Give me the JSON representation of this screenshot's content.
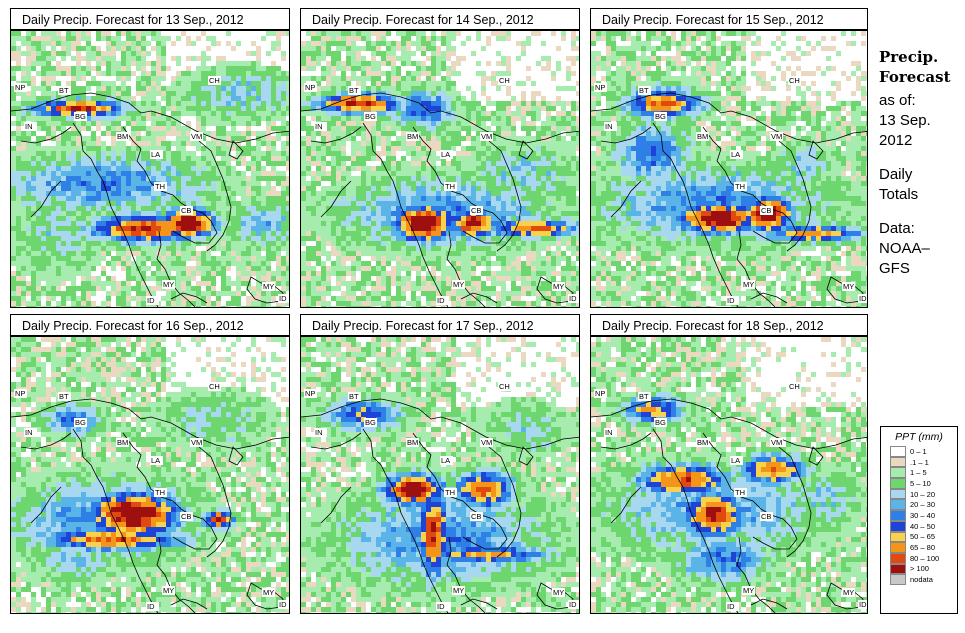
{
  "panels": [
    {
      "title": "Daily Precip. Forecast for  13 Sep., 2012"
    },
    {
      "title": "Daily Precip. Forecast for  14 Sep., 2012"
    },
    {
      "title": "Daily Precip. Forecast for  15 Sep., 2012"
    },
    {
      "title": "Daily Precip. Forecast for  16 Sep., 2012"
    },
    {
      "title": "Daily Precip. Forecast for  17 Sep., 2012"
    },
    {
      "title": "Daily Precip. Forecast for  18 Sep., 2012"
    }
  ],
  "map_labels": {
    "np": "NP",
    "bt": "BT",
    "bg": "BG",
    "in": "IN",
    "ch": "CH",
    "bm": "BM",
    "vm": "VM",
    "la": "LA",
    "th": "TH",
    "cb": "CB",
    "my": "MY",
    "id": "ID"
  },
  "sidebar": {
    "heading_line1": "Precip.",
    "heading_line2": "Forecast",
    "asof_line1": "as of:",
    "asof_line2": "13 Sep.",
    "asof_line3": "2012",
    "daily_line1": "Daily",
    "daily_line2": "Totals",
    "data_line1": "Data:",
    "data_line2": "NOAA–",
    "data_line3": "GFS"
  },
  "legend": {
    "title": "PPT (mm)",
    "items": [
      {
        "label": "0 – 1",
        "color": "#ffffff"
      },
      {
        "label": ".1 – 1",
        "color": "#ead9c0"
      },
      {
        "label": "1 – 5",
        "color": "#a6ecae"
      },
      {
        "label": "5 – 10",
        "color": "#6ed66e"
      },
      {
        "label": "10 – 20",
        "color": "#a8d8f0"
      },
      {
        "label": "20 – 30",
        "color": "#5ab4e8"
      },
      {
        "label": "30 – 40",
        "color": "#2e7fe6"
      },
      {
        "label": "40 – 50",
        "color": "#1d44d6"
      },
      {
        "label": "50 – 65",
        "color": "#f8d24a"
      },
      {
        "label": "65 – 80",
        "color": "#f49418"
      },
      {
        "label": "80 – 100",
        "color": "#e04a10"
      },
      {
        "label": "> 100",
        "color": "#9e1010"
      },
      {
        "label": "nodata",
        "color": "#c8c8c8"
      }
    ]
  }
}
